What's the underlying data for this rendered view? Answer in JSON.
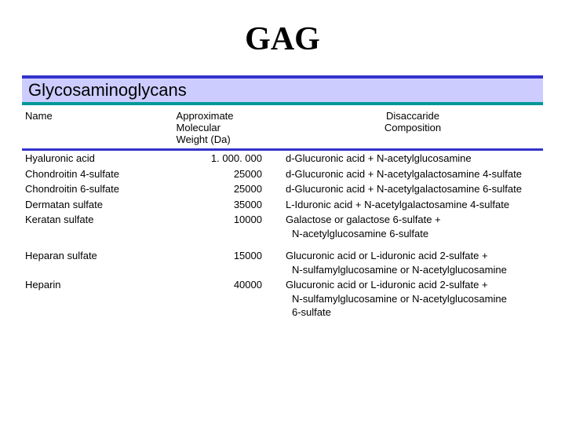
{
  "title": "GAG",
  "subtitle": "Glycosaminoglycans",
  "colors": {
    "band_bg": "#ccccff",
    "band_top_border": "#3333cc",
    "band_bottom_border": "#009999",
    "header_underline": "#3333cc",
    "text": "#000000",
    "background": "#ffffff"
  },
  "table": {
    "type": "table",
    "columns": {
      "name": "Name",
      "weight_l1": "Approximate",
      "weight_l2": "Molecular",
      "weight_l3": "Weight (Da)",
      "comp_l1": "Disaccaride",
      "comp_l2": "Composition"
    },
    "rows": [
      {
        "name": "Hyaluronic acid",
        "weight": "1. 000. 000",
        "comp": "d-Glucuronic acid + N-acetylglucosamine"
      },
      {
        "name": "Chondroitin 4-sulfate",
        "weight": "25000",
        "comp": "d-Glucuronic acid + N-acetylgalactosamine 4-sulfate"
      },
      {
        "name": "Chondroitin 6-sulfate",
        "weight": "25000",
        "comp": "d-Glucuronic acid + N-acetylgalactosamine 6-sulfate"
      },
      {
        "name": "Dermatan sulfate",
        "weight": "35000",
        "comp": "L-Iduronic acid + N-acetylgalactosamine 4-sulfate"
      },
      {
        "name": "Keratan sulfate",
        "weight": "10000",
        "comp": "Galactose or galactose 6-sulfate +",
        "comp2": " N-acetylglucosamine 6-sulfate"
      },
      {
        "name": "Heparan sulfate",
        "weight": "15000",
        "comp": "Glucuronic acid or L-iduronic acid 2-sulfate +",
        "comp2": "N-sulfamylglucosamine or N-acetylglucosamine",
        "gap": true
      },
      {
        "name": "Heparin",
        "weight": "40000",
        "comp": "Glucuronic acid or L-iduronic acid 2-sulfate +",
        "comp2": "N-sulfamylglucosamine or N-acetylglucosamine",
        "comp3": "6-sulfate"
      }
    ]
  }
}
